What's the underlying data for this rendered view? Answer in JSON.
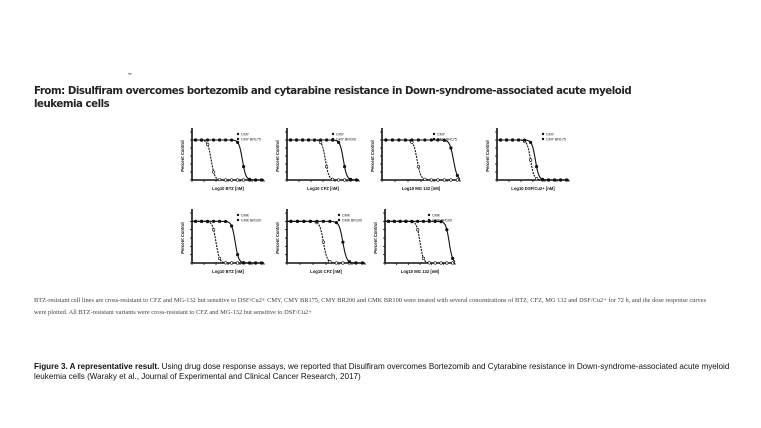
{
  "header": {
    "mark": "ˇ",
    "title": "From: Disulfiram overcomes bortezomib and cytarabine resistance in Down-syndrome-associated acute myeloid leukemia cells"
  },
  "figure_legend": "BTZ-resistant cell lines are cross-resistant to CFZ and MG-132 but sensitive to DSF/Cu2+ CMY, CMY BR175, CMY BR200 and CMK BR100 were treated with several concentrations of BTZ, CFZ, MG 132 and DSF/Cu2+ for 72 h, and the dose response curves were plotted. All BTZ-resistant variants were cross-resistant to CFZ and MG-132 but sensitive to DSF/Cu2+",
  "caption": {
    "label": "Figure 3. A representative result.",
    "text": " Using drug dose response assays, we reported that Disulfiram overcomes Bortezomib and Cytarabine resistance in Down-syndrome-associated acute myeloid leukemia cells (Waraky et al., Journal of Experimental and Clinical Cancer Research, 2017)"
  },
  "chart_data": [
    {
      "type": "line",
      "ylabel": "Percent Control",
      "xlabel": "Log10 BTZ [nM]",
      "ylim": [
        0,
        120
      ],
      "xlim": [
        -1,
        5
      ],
      "series": [
        {
          "name": "CMY",
          "ic50_log": 0.6
        },
        {
          "name": "CMY BR175",
          "ic50_log": 3.2
        }
      ]
    },
    {
      "type": "line",
      "ylabel": "Percent Control",
      "xlabel": "Log10 CFZ [nM]",
      "ylim": [
        0,
        120
      ],
      "xlim": [
        -1,
        5
      ],
      "series": [
        {
          "name": "CMY",
          "ic50_log": 2.2
        },
        {
          "name": "CMY BR200",
          "ic50_log": 3.7
        }
      ]
    },
    {
      "type": "line",
      "ylabel": "Percent Control",
      "xlabel": "Log10 MG 132 [nM]",
      "ylim": [
        0,
        120
      ],
      "xlim": [
        -1,
        5
      ],
      "series": [
        {
          "name": "CMY",
          "ic50_log": 1.7
        },
        {
          "name": "CMY BR175",
          "ic50_log": 4.5
        }
      ]
    },
    {
      "type": "line",
      "ylabel": "Percent Control",
      "xlabel": "Log10 DSF/Cu2+ [nM]",
      "ylim": [
        0,
        120
      ],
      "xlim": [
        -1,
        5
      ],
      "series": [
        {
          "name": "CMY",
          "ic50_log": 1.8
        },
        {
          "name": "CMY BR175",
          "ic50_log": 2.2
        }
      ]
    },
    {
      "type": "line",
      "ylabel": "Percent Control",
      "xlabel": "Log10 BTZ [nM]",
      "ylim": [
        0,
        120
      ],
      "xlim": [
        -1,
        5
      ],
      "series": [
        {
          "name": "CMK",
          "ic50_log": 1.0
        },
        {
          "name": "CMK BR100",
          "ic50_log": 2.6
        }
      ]
    },
    {
      "type": "line",
      "ylabel": "Percent Control",
      "xlabel": "Log10 CFZ [nM]",
      "ylim": [
        0,
        120
      ],
      "xlim": [
        -1,
        5
      ],
      "series": [
        {
          "name": "CMK",
          "ic50_log": 1.8
        },
        {
          "name": "CMK BR100",
          "ic50_log": 3.3
        }
      ]
    },
    {
      "type": "line",
      "ylabel": "Percent Control",
      "xlabel": "Log10 MG 132 [nM]",
      "ylim": [
        0,
        120
      ],
      "xlim": [
        -1,
        5
      ],
      "series": [
        {
          "name": "CMK",
          "ic50_log": 2.0
        },
        {
          "name": "CMK BR100",
          "ic50_log": 4.5
        }
      ]
    }
  ]
}
